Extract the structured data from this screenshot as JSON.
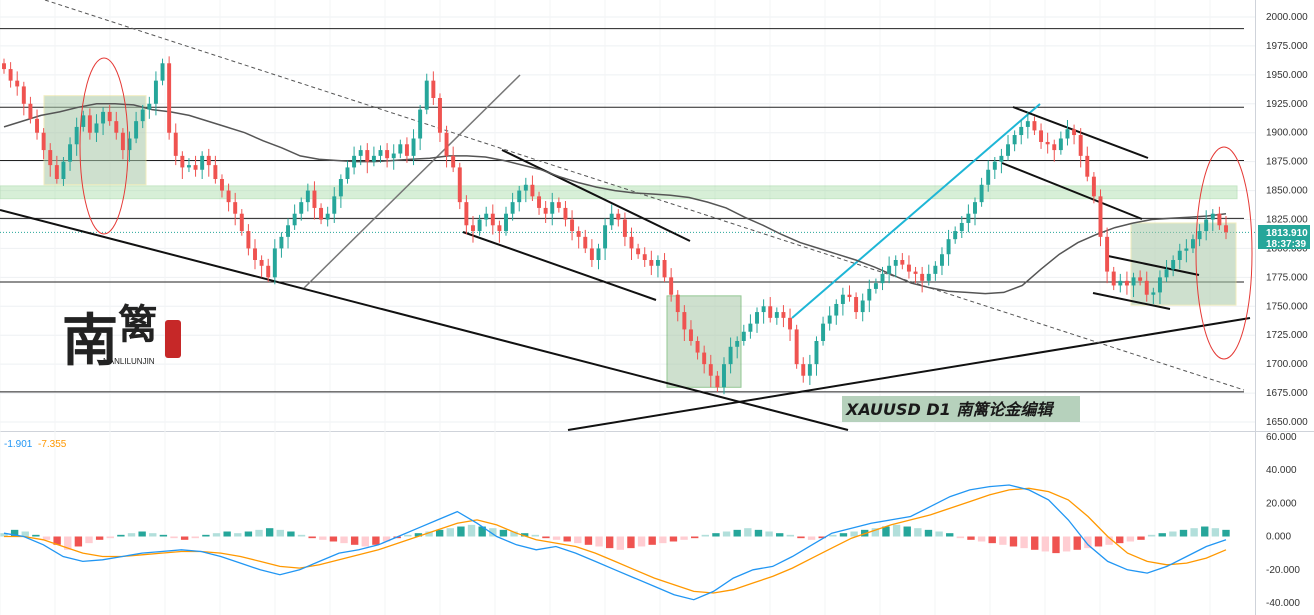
{
  "chart_data": [
    {
      "type": "candlestick",
      "symbol": "XAUUSD",
      "timeframe": "D1",
      "title": "XAUUSD  D1  南篱论金编辑",
      "ylim": [
        1640,
        2005
      ],
      "yticks": [
        "2000.000",
        "1975.000",
        "1950.000",
        "1925.000",
        "1900.000",
        "1875.000",
        "1850.000",
        "1825.000",
        "1800.000",
        "1775.000",
        "1750.000",
        "1725.000",
        "1700.000",
        "1675.000",
        "1650.000"
      ],
      "current_price": "1813.910",
      "countdown": "18:37:39",
      "horizontal_levels": [
        1990,
        1922,
        1876,
        1826,
        1771,
        1676
      ],
      "support_zone": [
        1843,
        1854
      ],
      "grid": true,
      "candles_desc": "approximate daily closes",
      "closes": [
        1955,
        1945,
        1940,
        1925,
        1912,
        1900,
        1885,
        1872,
        1860,
        1875,
        1890,
        1905,
        1915,
        1900,
        1908,
        1918,
        1910,
        1900,
        1885,
        1895,
        1910,
        1920,
        1925,
        1945,
        1960,
        1900,
        1880,
        1870,
        1872,
        1868,
        1880,
        1872,
        1860,
        1850,
        1840,
        1830,
        1815,
        1800,
        1790,
        1785,
        1775,
        1800,
        1810,
        1820,
        1830,
        1840,
        1850,
        1835,
        1825,
        1830,
        1845,
        1860,
        1870,
        1880,
        1885,
        1875,
        1880,
        1885,
        1878,
        1882,
        1890,
        1880,
        1895,
        1920,
        1945,
        1930,
        1900,
        1880,
        1870,
        1840,
        1820,
        1815,
        1825,
        1830,
        1820,
        1815,
        1830,
        1840,
        1850,
        1855,
        1845,
        1835,
        1830,
        1840,
        1835,
        1825,
        1815,
        1810,
        1800,
        1790,
        1800,
        1820,
        1830,
        1825,
        1810,
        1800,
        1795,
        1790,
        1785,
        1790,
        1775,
        1760,
        1745,
        1730,
        1720,
        1710,
        1700,
        1690,
        1680,
        1700,
        1715,
        1720,
        1728,
        1735,
        1745,
        1750,
        1740,
        1745,
        1740,
        1730,
        1700,
        1690,
        1700,
        1720,
        1735,
        1742,
        1752,
        1760,
        1758,
        1745,
        1755,
        1765,
        1770,
        1778,
        1785,
        1790,
        1786,
        1780,
        1778,
        1772,
        1778,
        1785,
        1795,
        1808,
        1815,
        1822,
        1830,
        1840,
        1855,
        1868,
        1875,
        1880,
        1890,
        1898,
        1905,
        1910,
        1902,
        1892,
        1890,
        1885,
        1895,
        1903,
        1898,
        1880,
        1862,
        1845,
        1810,
        1780,
        1768,
        1772,
        1768,
        1775,
        1772,
        1760,
        1762,
        1775,
        1782,
        1790,
        1798,
        1800,
        1808,
        1815,
        1825,
        1830,
        1820,
        1814
      ],
      "moving_average_desc": "approximate 50-period MA",
      "ma": [
        1905,
        1910,
        1915,
        1918,
        1922,
        1925,
        1925,
        1924,
        1920,
        1918,
        1915,
        1910,
        1905,
        1900,
        1893,
        1887,
        1880,
        1877,
        1876,
        1875,
        1875,
        1876,
        1877,
        1878,
        1880,
        1880,
        1879,
        1876,
        1872,
        1868,
        1862,
        1857,
        1853,
        1850,
        1848,
        1847,
        1846,
        1844,
        1840,
        1835,
        1827,
        1820,
        1812,
        1805,
        1800,
        1795,
        1790,
        1784,
        1777,
        1770,
        1766,
        1763,
        1762,
        1761,
        1762,
        1768,
        1782,
        1795,
        1805,
        1812,
        1818,
        1822,
        1825,
        1826,
        1827,
        1828,
        1830
      ],
      "macd": {
        "labels": [
          "-1.901",
          "-7.355"
        ],
        "ylim": [
          -42,
          62
        ],
        "yticks": [
          "60.000",
          "40.000",
          "20.000",
          "0.000",
          "-20.000",
          "-40.000"
        ],
        "histogram": [
          2,
          4,
          3,
          1,
          -2,
          -5,
          -8,
          -6,
          -4,
          -2,
          -1,
          1,
          2,
          3,
          2,
          1,
          -1,
          -2,
          -1,
          1,
          2,
          3,
          2,
          3,
          4,
          5,
          4,
          3,
          1,
          -1,
          -2,
          -3,
          -4,
          -5,
          -6,
          -5,
          -3,
          -1,
          1,
          2,
          3,
          4,
          5,
          6,
          7,
          6,
          5,
          4,
          3,
          2,
          1,
          -1,
          -2,
          -3,
          -4,
          -5,
          -6,
          -7,
          -8,
          -7,
          -6,
          -5,
          -4,
          -3,
          -2,
          -1,
          1,
          2,
          3,
          4,
          5,
          4,
          3,
          2,
          1,
          -1,
          -2,
          -1,
          1,
          2,
          3,
          4,
          5,
          6,
          7,
          6,
          5,
          4,
          3,
          2,
          -1,
          -2,
          -3,
          -4,
          -5,
          -6,
          -7,
          -8,
          -9,
          -10,
          -9,
          -8,
          -7,
          -6,
          -5,
          -4,
          -3,
          -2,
          1,
          2,
          3,
          4,
          5,
          6,
          5,
          4
        ],
        "macd_line": [
          2,
          0,
          -5,
          -12,
          -15,
          -14,
          -12,
          -10,
          -9,
          -8,
          -9,
          -12,
          -16,
          -20,
          -23,
          -20,
          -15,
          -10,
          -8,
          -5,
          0,
          5,
          10,
          15,
          8,
          0,
          -5,
          -8,
          -6,
          -10,
          -15,
          -20,
          -25,
          -30,
          -35,
          -38,
          -33,
          -25,
          -20,
          -18,
          -12,
          -5,
          2,
          5,
          8,
          10,
          12,
          18,
          24,
          28,
          30,
          31,
          28,
          22,
          10,
          -5,
          -15,
          -20,
          -22,
          -18,
          -12,
          -6,
          -2
        ],
        "signal_line": [
          0,
          0,
          -2,
          -6,
          -10,
          -12,
          -12,
          -11,
          -10,
          -9,
          -9,
          -10,
          -12,
          -15,
          -18,
          -19,
          -17,
          -14,
          -11,
          -8,
          -4,
          0,
          4,
          8,
          10,
          7,
          2,
          -2,
          -4,
          -6,
          -10,
          -15,
          -20,
          -25,
          -29,
          -33,
          -34,
          -32,
          -28,
          -24,
          -19,
          -13,
          -7,
          -1,
          3,
          7,
          10,
          13,
          17,
          21,
          25,
          28,
          29,
          27,
          22,
          12,
          0,
          -10,
          -15,
          -17,
          -16,
          -13,
          -8
        ]
      }
    }
  ],
  "logo": {
    "char1": "南",
    "char2": "篱",
    "subtitle": "NANLILUNJIN"
  },
  "colors": {
    "up": "#26a69a",
    "down": "#ef5350",
    "ma": "#555555",
    "channel_blue": "#1eb6d6",
    "macd_blue": "#2196f3",
    "macd_orange": "#ff9800",
    "zone": "#8fd48f",
    "ellipse": "#e53935"
  }
}
